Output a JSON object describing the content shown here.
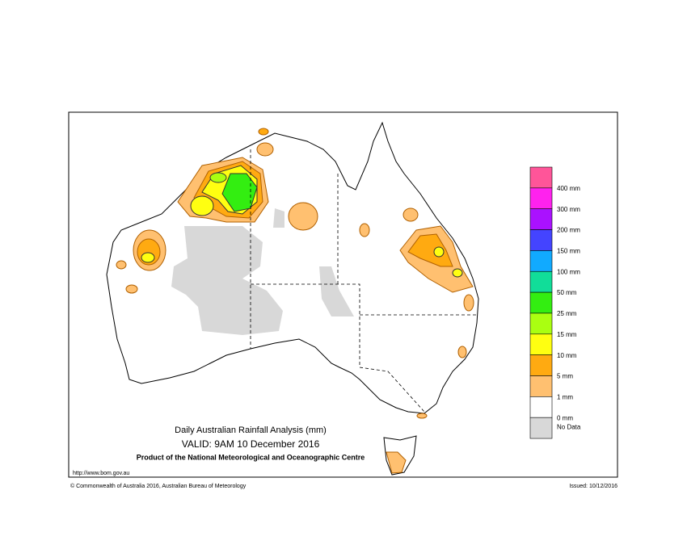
{
  "header": {
    "title": "Daily Australian Rainfall Analysis (mm)",
    "valid": "VALID: 9AM 10 December 2016",
    "product": "Product of the National Meteorological and Oceanographic Centre",
    "url": "http://www.bom.gov.au"
  },
  "legend": {
    "items": [
      {
        "label": "400 mm",
        "color": "#ff5599"
      },
      {
        "label": "300 mm",
        "color": "#ff22ee"
      },
      {
        "label": "200 mm",
        "color": "#aa11ff"
      },
      {
        "label": "150 mm",
        "color": "#4444ff"
      },
      {
        "label": "100 mm",
        "color": "#11aaff"
      },
      {
        "label": "50 mm",
        "color": "#11dd99"
      },
      {
        "label": "25 mm",
        "color": "#33ee11"
      },
      {
        "label": "15 mm",
        "color": "#aaff11"
      },
      {
        "label": "10 mm",
        "color": "#ffff11"
      },
      {
        "label": "5 mm",
        "color": "#ffaa11"
      },
      {
        "label": "1 mm",
        "color": "#ffc070"
      },
      {
        "label": "0 mm",
        "color": "#ffffff"
      }
    ],
    "no_data": {
      "label": "No Data",
      "color": "#d8d8d8"
    }
  },
  "footer": {
    "copyright": "© Commonwealth of Australia 2016, Australian Bureau of Meteorology",
    "issued": "Issued: 10/12/2016"
  }
}
